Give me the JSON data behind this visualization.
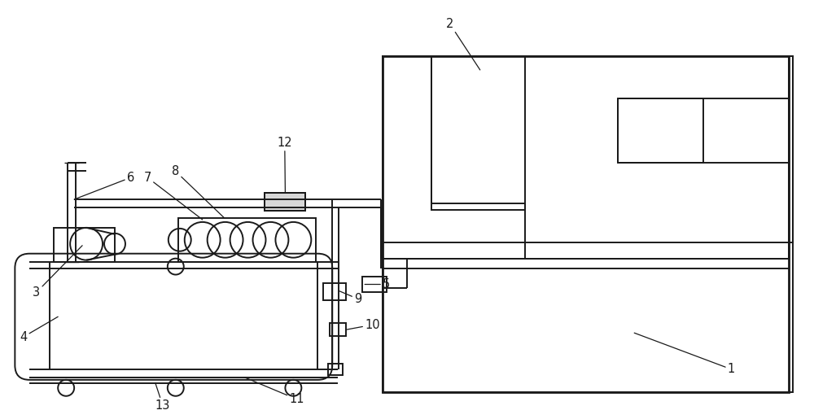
{
  "bg_color": "#ffffff",
  "line_color": "#1a1a1a",
  "lw": 1.4,
  "figsize": [
    10.0,
    5.15
  ],
  "dpi": 100,
  "label_fs": 10.5
}
